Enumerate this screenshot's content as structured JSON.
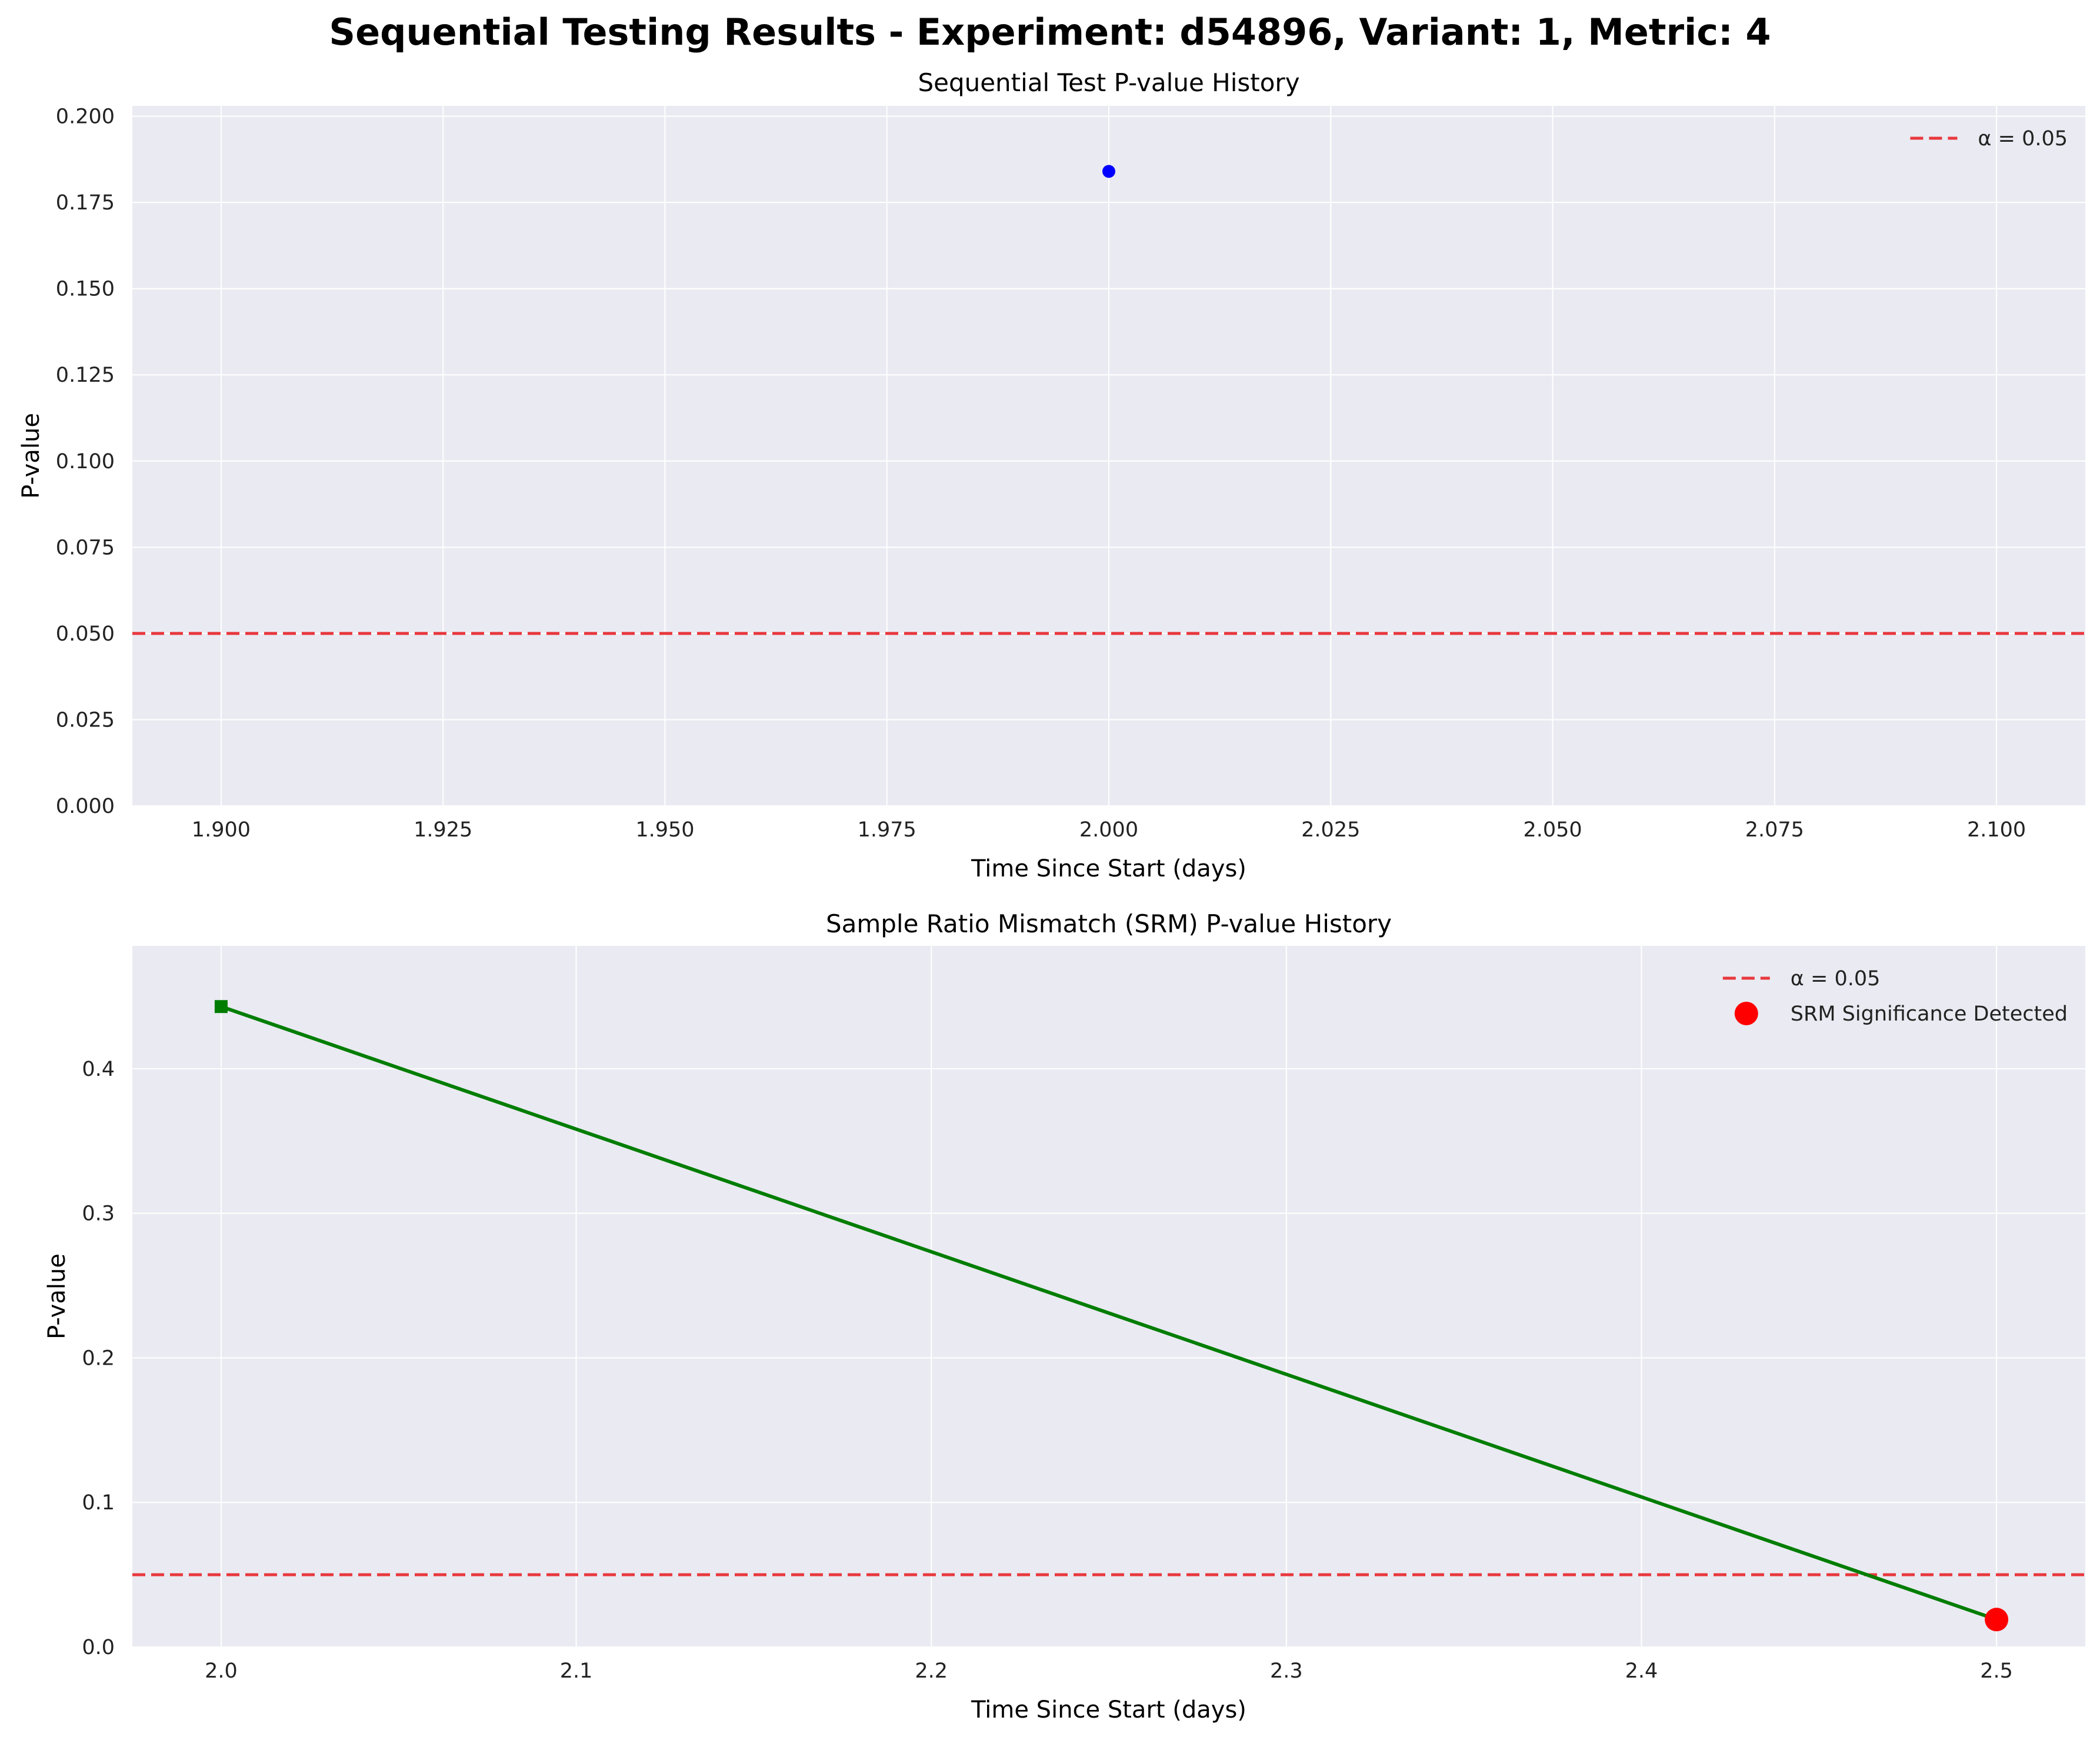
{
  "title": "Sequential Testing Results - Experiment: d54896, Variant: 1, Metric: 4",
  "colors": {
    "axes_bg": "#eaeaf2",
    "grid": "#ffffff",
    "threshold": "#e8383d",
    "seq_point": "#0000ff",
    "srm_line": "#007d00",
    "srm_significant": "#ff0000"
  },
  "chart_data": [
    {
      "type": "scatter",
      "title": "Sequential Test P-value History",
      "xlabel": "Time Since Start (days)",
      "ylabel": "P-value",
      "xlim": [
        1.89,
        2.11
      ],
      "ylim": [
        0.0,
        0.203
      ],
      "x_ticks": [
        1.9,
        1.925,
        1.95,
        1.975,
        2.0,
        2.025,
        2.05,
        2.075,
        2.1
      ],
      "x_tick_labels": [
        "1.900",
        "1.925",
        "1.950",
        "1.975",
        "2.000",
        "2.025",
        "2.050",
        "2.075",
        "2.100"
      ],
      "y_ticks": [
        0.0,
        0.025,
        0.05,
        0.075,
        0.1,
        0.125,
        0.15,
        0.175,
        0.2
      ],
      "y_tick_labels": [
        "0.000",
        "0.025",
        "0.050",
        "0.075",
        "0.100",
        "0.125",
        "0.150",
        "0.175",
        "0.200"
      ],
      "grid": true,
      "legend_position": "top-right",
      "series": [
        {
          "marker": "circle",
          "color": "#0000ff",
          "points": [
            {
              "x": 2.0,
              "y": 0.184
            }
          ]
        }
      ],
      "hlines": [
        {
          "name": "α = 0.05",
          "y": 0.05,
          "color": "#e8383d",
          "style": "dashed"
        }
      ],
      "legend": [
        {
          "label": "α = 0.05",
          "kind": "dashed-line",
          "color": "#e8383d"
        }
      ]
    },
    {
      "type": "line",
      "title": "Sample Ratio Mismatch (SRM) P-value History",
      "xlabel": "Time Since Start (days)",
      "ylabel": "P-value",
      "xlim": [
        1.975,
        2.525
      ],
      "ylim": [
        0.0,
        0.485
      ],
      "x_ticks": [
        2.0,
        2.1,
        2.2,
        2.3,
        2.4,
        2.5
      ],
      "x_tick_labels": [
        "2.0",
        "2.1",
        "2.2",
        "2.3",
        "2.4",
        "2.5"
      ],
      "y_ticks": [
        0.0,
        0.1,
        0.2,
        0.3,
        0.4
      ],
      "y_tick_labels": [
        "0.0",
        "0.1",
        "0.2",
        "0.3",
        "0.4"
      ],
      "grid": true,
      "legend_position": "top-right",
      "series": [
        {
          "marker": "square",
          "color": "#007d00",
          "points": [
            {
              "x": 2.0,
              "y": 0.443
            },
            {
              "x": 2.5,
              "y": 0.019
            }
          ]
        }
      ],
      "hlines": [
        {
          "name": "α = 0.05",
          "y": 0.05,
          "color": "#e8383d",
          "style": "dashed"
        }
      ],
      "significant_points": [
        {
          "name": "SRM Significance Detected",
          "x": 2.5,
          "y": 0.019,
          "color": "#ff0000"
        }
      ],
      "legend": [
        {
          "label": "α = 0.05",
          "kind": "dashed-line",
          "color": "#e8383d"
        },
        {
          "label": "SRM Significance Detected",
          "kind": "dot",
          "color": "#ff0000"
        }
      ]
    }
  ]
}
